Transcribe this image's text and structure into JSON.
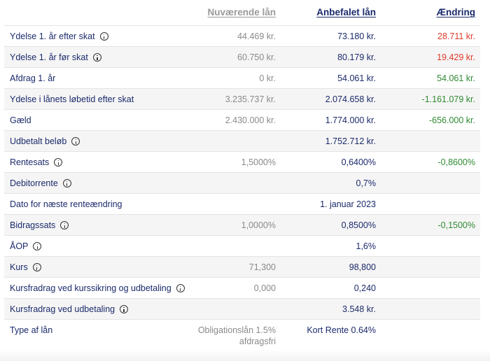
{
  "header": {
    "current": "Nuværende lån",
    "recommended": "Anbefalet lån",
    "change": "Ændring"
  },
  "rows": [
    {
      "label": "Ydelse 1. år efter skat",
      "info": true,
      "current": "44.469 kr.",
      "recommended": "73.180 kr.",
      "change": "28.711 kr.",
      "change_color": "red"
    },
    {
      "label": "Ydelse 1. år før skat",
      "info": true,
      "current": "60.750 kr.",
      "recommended": "80.179 kr.",
      "change": "19.429 kr.",
      "change_color": "red"
    },
    {
      "label": "Afdrag 1. år",
      "info": false,
      "current": "0 kr.",
      "recommended": "54.061 kr.",
      "change": "54.061 kr.",
      "change_color": "green"
    },
    {
      "label": "Ydelse i lånets løbetid efter skat",
      "info": false,
      "current": "3.235.737 kr.",
      "recommended": "2.074.658 kr.",
      "change": "-1.161.079 kr.",
      "change_color": "green"
    },
    {
      "label": "Gæld",
      "info": false,
      "current": "2.430.000 kr.",
      "recommended": "1.774.000 kr.",
      "change": "-656.000 kr.",
      "change_color": "green"
    },
    {
      "label": "Udbetalt beløb",
      "info": true,
      "current": "",
      "recommended": "1.752.712 kr.",
      "change": "",
      "change_color": "green"
    },
    {
      "label": "Rentesats",
      "info": true,
      "current": "1,5000%",
      "recommended": "0,6400%",
      "change": "-0,8600%",
      "change_color": "green"
    },
    {
      "label": "Debitorrente",
      "info": true,
      "current": "",
      "recommended": "0,7%",
      "change": "",
      "change_color": "green"
    },
    {
      "label": "Dato for næste renteændring",
      "info": false,
      "current": "",
      "recommended": "1. januar 2023",
      "change": "",
      "change_color": "green"
    },
    {
      "label": "Bidragssats",
      "info": true,
      "current": "1,0000%",
      "recommended": "0,8500%",
      "change": "-0,1500%",
      "change_color": "green"
    },
    {
      "label": "ÅOP",
      "info": true,
      "current": "",
      "recommended": "1,6%",
      "change": "",
      "change_color": "green"
    },
    {
      "label": "Kurs",
      "info": true,
      "current": "71,300",
      "recommended": "98,800",
      "change": "",
      "change_color": "green"
    },
    {
      "label": "Kursfradrag ved kurssikring og udbetaling",
      "info": true,
      "current": "0,000",
      "recommended": "0,240",
      "change": "",
      "change_color": "green"
    },
    {
      "label": "Kursfradrag ved udbetaling",
      "info": true,
      "current": "",
      "recommended": "3.548 kr.",
      "change": "",
      "change_color": "green"
    }
  ],
  "loan_type": {
    "label": "Type af lån",
    "current_line1": "Obligationslån 1.5%",
    "current_line2": "afdragsfri",
    "recommended": "Kort Rente 0.64%"
  },
  "colors": {
    "text_navy": "#1b2a6b",
    "muted": "#8a8a8a",
    "negative_red": "#e03b2b",
    "positive_green": "#2f8a33"
  }
}
